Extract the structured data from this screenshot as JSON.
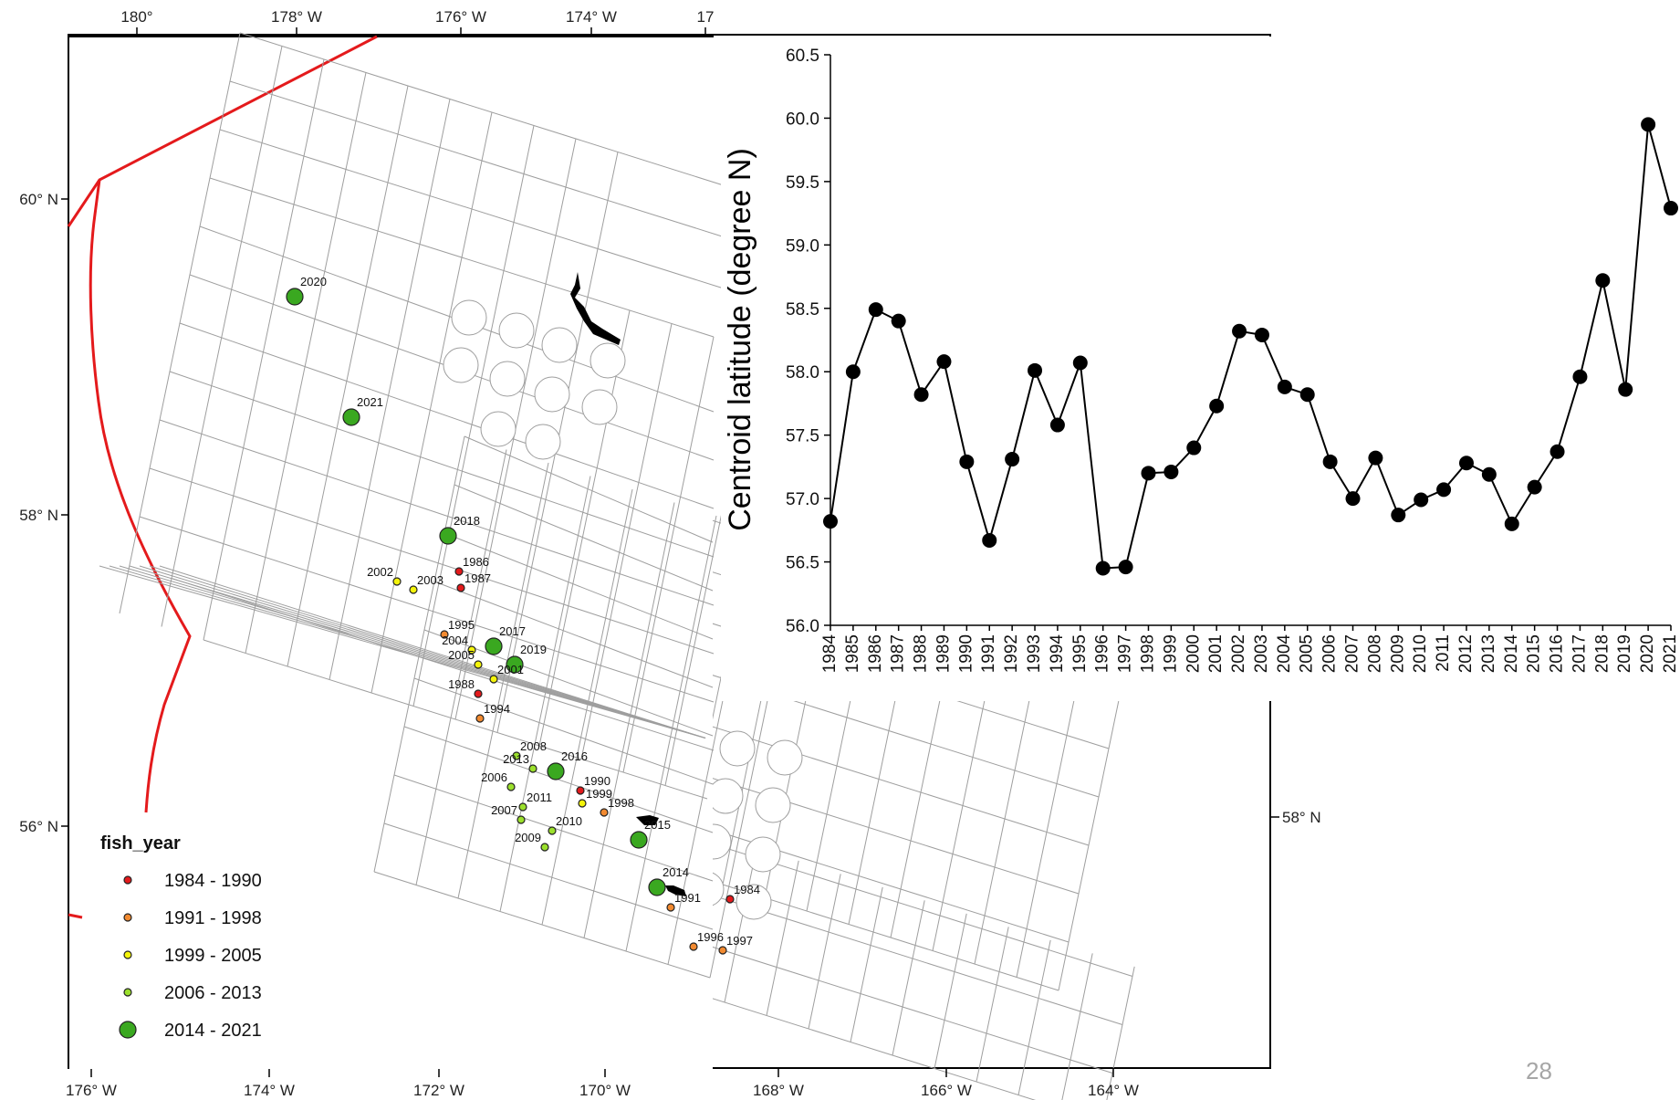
{
  "map": {
    "top_lon_ticks": [
      "180°",
      "178° W",
      "176° W",
      "174° W",
      "17"
    ],
    "bottom_lon_ticks": [
      "176° W",
      "174° W",
      "172° W",
      "170° W",
      "168° W",
      "166° W",
      "164° W"
    ],
    "left_lat_ticks": [
      "60° N",
      "58° N",
      "56° N"
    ],
    "right_lat_ticks": [
      "58° N"
    ],
    "boundary_color": "#e41a1c",
    "grid_color": "#9e9e9e",
    "points": [
      {
        "label": "2020",
        "group": 4
      },
      {
        "label": "2021",
        "group": 4
      },
      {
        "label": "2018",
        "group": 4
      },
      {
        "label": "1986",
        "group": 0
      },
      {
        "label": "1987",
        "group": 0
      },
      {
        "label": "2002",
        "group": 2
      },
      {
        "label": "2003",
        "group": 2
      },
      {
        "label": "1995",
        "group": 1
      },
      {
        "label": "2017",
        "group": 4
      },
      {
        "label": "2004",
        "group": 2
      },
      {
        "label": "2019",
        "group": 4
      },
      {
        "label": "2005",
        "group": 2
      },
      {
        "label": "2001",
        "group": 2
      },
      {
        "label": "1988",
        "group": 0
      },
      {
        "label": "1994",
        "group": 1
      },
      {
        "label": "2008",
        "group": 3
      },
      {
        "label": "2016",
        "group": 4
      },
      {
        "label": "2013",
        "group": 3
      },
      {
        "label": "1990",
        "group": 0
      },
      {
        "label": "2006",
        "group": 3
      },
      {
        "label": "1999",
        "group": 2
      },
      {
        "label": "2011",
        "group": 3
      },
      {
        "label": "1998",
        "group": 1
      },
      {
        "label": "2007",
        "group": 3
      },
      {
        "label": "2010",
        "group": 3
      },
      {
        "label": "2015",
        "group": 4
      },
      {
        "label": "2009",
        "group": 3
      },
      {
        "label": "2014",
        "group": 4
      },
      {
        "label": "1984",
        "group": 0
      },
      {
        "label": "1991",
        "group": 1
      },
      {
        "label": "1996",
        "group": 1
      },
      {
        "label": "1997",
        "group": 1
      }
    ]
  },
  "legend": {
    "title": "fish_year",
    "items": [
      {
        "label": "1984 - 1990",
        "color": "#e31a1c"
      },
      {
        "label": "1991 - 1998",
        "color": "#f28a30"
      },
      {
        "label": "1999 - 2005",
        "color": "#f4f40a"
      },
      {
        "label": "2006 - 2013",
        "color": "#9be02c"
      },
      {
        "label": "2014 - 2021",
        "color": "#3aa820"
      }
    ]
  },
  "chart_data": {
    "type": "line",
    "title": "",
    "xlabel": "",
    "ylabel": "Centroid latitude (degree N)",
    "ylim": [
      56.0,
      60.5
    ],
    "yticks": [
      "56.0",
      "56.5",
      "57.0",
      "57.5",
      "58.0",
      "58.5",
      "59.0",
      "59.5",
      "60.0",
      "60.5"
    ],
    "categories": [
      "1984",
      "1985",
      "1986",
      "1987",
      "1988",
      "1989",
      "1990",
      "1991",
      "1992",
      "1993",
      "1994",
      "1995",
      "1996",
      "1997",
      "1998",
      "1999",
      "2000",
      "2001",
      "2002",
      "2003",
      "2004",
      "2005",
      "2006",
      "2007",
      "2008",
      "2009",
      "2010",
      "2011",
      "2012",
      "2013",
      "2014",
      "2015",
      "2016",
      "2017",
      "2018",
      "2019",
      "2020",
      "2021"
    ],
    "values": [
      56.82,
      58.0,
      58.49,
      58.4,
      57.82,
      58.08,
      57.29,
      56.67,
      57.31,
      58.01,
      57.58,
      58.07,
      56.45,
      56.46,
      57.2,
      57.21,
      57.4,
      57.73,
      58.32,
      58.29,
      57.88,
      57.82,
      57.29,
      57.0,
      57.32,
      56.87,
      56.99,
      57.07,
      57.28,
      57.19,
      56.8,
      57.09,
      57.37,
      57.96,
      58.72,
      57.86,
      59.95,
      59.29
    ]
  },
  "page_number": "28"
}
